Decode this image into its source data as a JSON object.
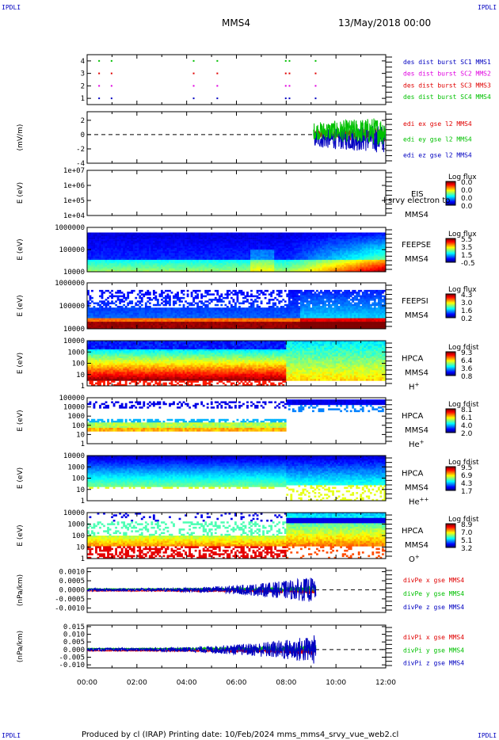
{
  "header": {
    "corner_label": "IPDLI",
    "title": "MMS4",
    "datetime": "13/May/2018 00:00"
  },
  "footer": {
    "text": "Produced by cl (IRAP)   Printing date: 10/Feb/2024   mms_mms4_srvy_vue_web2.cl"
  },
  "colors": {
    "red": "#e00000",
    "magenta": "#e000e0",
    "green": "#00c000",
    "blue": "#0000c0",
    "black": "#000000"
  },
  "chart_data": [
    {
      "id": "burst",
      "type": "scatter",
      "yticks": [
        "1",
        "2",
        "3",
        "4"
      ],
      "ylim": [
        0.5,
        4.5
      ],
      "legend": [
        {
          "label": "des dist burst SC1 MMS1",
          "color": "blue"
        },
        {
          "label": "des dist burst SC2 MMS2",
          "color": "magenta"
        },
        {
          "label": "des dist burst SC3 MMS3",
          "color": "red"
        },
        {
          "label": "des dist burst SC4 MMS4",
          "color": "green"
        }
      ],
      "burst_hours": [
        0.45,
        0.95,
        4.25,
        5.2,
        7.95,
        8.1,
        9.15
      ]
    },
    {
      "id": "edi",
      "type": "line",
      "ylabel": "(mV/m)",
      "yticks": [
        "-4",
        "-2",
        "0",
        "2"
      ],
      "ylim": [
        -4,
        3.2
      ],
      "data_start_hour": 9.1,
      "amplitude": 2.0,
      "legend": [
        {
          "label": "edi ex gse l2 MMS4",
          "color": "red"
        },
        {
          "label": "edi ey gse l2 MMS4",
          "color": "green"
        },
        {
          "label": "edi ez gse l2 MMS4",
          "color": "blue"
        }
      ]
    },
    {
      "id": "eis",
      "type": "heatmap",
      "ylabel": "E (eV)",
      "yticks": [
        "1e+04",
        "1e+05",
        "1e+06",
        "1e+07"
      ],
      "side_label": [
        "EIS",
        "MMS4"
      ],
      "overlay_text": "l srvy electron to",
      "cb_title": "Log flux",
      "cb_ticks": [
        "0.0",
        "0.0",
        "0.0",
        "0.0"
      ]
    },
    {
      "id": "feepse",
      "type": "heatmap",
      "ylabel": "E (eV)",
      "yticks": [
        "10000",
        "100000",
        "1000000"
      ],
      "side_label": [
        "FEEPSE",
        "MMS4"
      ],
      "cb_title": "Log flux",
      "cb_ticks": [
        "5.5",
        "3.5",
        "1.5",
        "-0.5"
      ]
    },
    {
      "id": "feepsi",
      "type": "heatmap",
      "ylabel": "E (eV)",
      "yticks": [
        "10000",
        "100000",
        "1000000"
      ],
      "side_label": [
        "FEEPSI",
        "MMS4"
      ],
      "cb_title": "Log flux",
      "cb_ticks": [
        "4.3",
        "3.0",
        "1.6",
        "0.2"
      ]
    },
    {
      "id": "hpca_h",
      "type": "heatmap",
      "ylabel": "E (eV)",
      "yticks": [
        "1",
        "10",
        "100",
        "1000",
        "10000"
      ],
      "side_label": [
        "HPCA",
        "MMS4",
        "H+"
      ],
      "cb_title": "Log fdist",
      "cb_ticks": [
        "9.3",
        "6.4",
        "3.6",
        "0.8"
      ]
    },
    {
      "id": "hpca_he",
      "type": "heatmap",
      "ylabel": "E (eV)",
      "yticks": [
        "1",
        "10",
        "100",
        "1000",
        "10000",
        "100000"
      ],
      "side_label": [
        "HPCA",
        "MMS4",
        "He+"
      ],
      "cb_title": "Log fdist",
      "cb_ticks": [
        "8.1",
        "6.1",
        "4.0",
        "2.0"
      ]
    },
    {
      "id": "hpca_hepp",
      "type": "heatmap",
      "ylabel": "E (eV)",
      "yticks": [
        "1",
        "10",
        "100",
        "1000",
        "10000"
      ],
      "side_label": [
        "HPCA",
        "MMS4",
        "He++"
      ],
      "cb_title": "Log fdist",
      "cb_ticks": [
        "9.5",
        "6.9",
        "4.3",
        "1.7"
      ]
    },
    {
      "id": "hpca_o",
      "type": "heatmap",
      "ylabel": "E (eV)",
      "yticks": [
        "1",
        "10",
        "100",
        "1000",
        "10000"
      ],
      "side_label": [
        "HPCA",
        "MMS4",
        "O+"
      ],
      "cb_title": "Log fdist",
      "cb_ticks": [
        "8.9",
        "7.0",
        "5.1",
        "3.2"
      ]
    },
    {
      "id": "divpe",
      "type": "line",
      "ylabel": "(nPa/km)",
      "yticks": [
        "-0.0010",
        "-0.0005",
        "0.0000",
        "0.0005",
        "0.0010"
      ],
      "ylim": [
        -0.00125,
        0.0012
      ],
      "data_end_hour": 9.2,
      "legend": [
        {
          "label": "divPe x gse MMS4",
          "color": "red"
        },
        {
          "label": "divPe y gse MMS4",
          "color": "green"
        },
        {
          "label": "divPe z gse MMS4",
          "color": "blue"
        }
      ]
    },
    {
      "id": "divpi",
      "type": "line",
      "ylabel": "(nPa/km)",
      "yticks": [
        "-0.010",
        "-0.005",
        "0.000",
        "0.005",
        "0.010",
        "0.015"
      ],
      "ylim": [
        -0.012,
        0.016
      ],
      "data_end_hour": 9.2,
      "legend": [
        {
          "label": "divPi x gse MMS4",
          "color": "red"
        },
        {
          "label": "divPi y gse MMS4",
          "color": "green"
        },
        {
          "label": "divPi z gse MMS4",
          "color": "blue"
        }
      ]
    }
  ],
  "time_axis": {
    "range_hours": [
      0,
      12
    ],
    "ticks": [
      "00:00",
      "02:00",
      "04:00",
      "06:00",
      "08:00",
      "10:00",
      "12:00"
    ]
  }
}
